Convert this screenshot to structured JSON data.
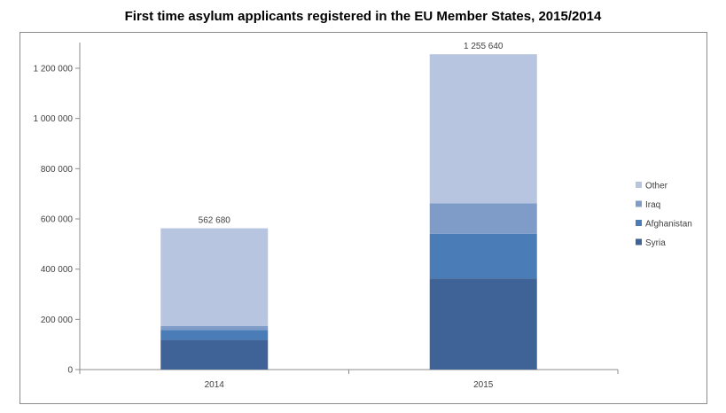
{
  "chart_data": {
    "type": "bar",
    "stacked": true,
    "title": "First time asylum applicants registered in the EU Member States, 2015/2014",
    "categories": [
      "2014",
      "2015"
    ],
    "series": [
      {
        "name": "Syria",
        "values": [
          118000,
          363000
        ],
        "color": "#3f6396"
      },
      {
        "name": "Afghanistan",
        "values": [
          40000,
          178000
        ],
        "color": "#4a7db8"
      },
      {
        "name": "Iraq",
        "values": [
          15000,
          121000
        ],
        "color": "#7f9cc9"
      },
      {
        "name": "Other",
        "values": [
          389680,
          593640
        ],
        "color": "#b7c5e0"
      }
    ],
    "totals": [
      562680,
      1255640
    ],
    "total_labels": [
      "562 680",
      "1 255 640"
    ],
    "ylim": [
      0,
      1300000
    ],
    "yticks": [
      0,
      200000,
      400000,
      600000,
      800000,
      1000000,
      1200000
    ],
    "ytick_labels": [
      "0",
      "200 000",
      "400 000",
      "600 000",
      "800 000",
      "1 000 000",
      "1 200 000"
    ],
    "xlabel": "",
    "ylabel": "",
    "grid": false,
    "legend_position": "right",
    "legend_order": [
      "Other",
      "Iraq",
      "Afghanistan",
      "Syria"
    ]
  }
}
